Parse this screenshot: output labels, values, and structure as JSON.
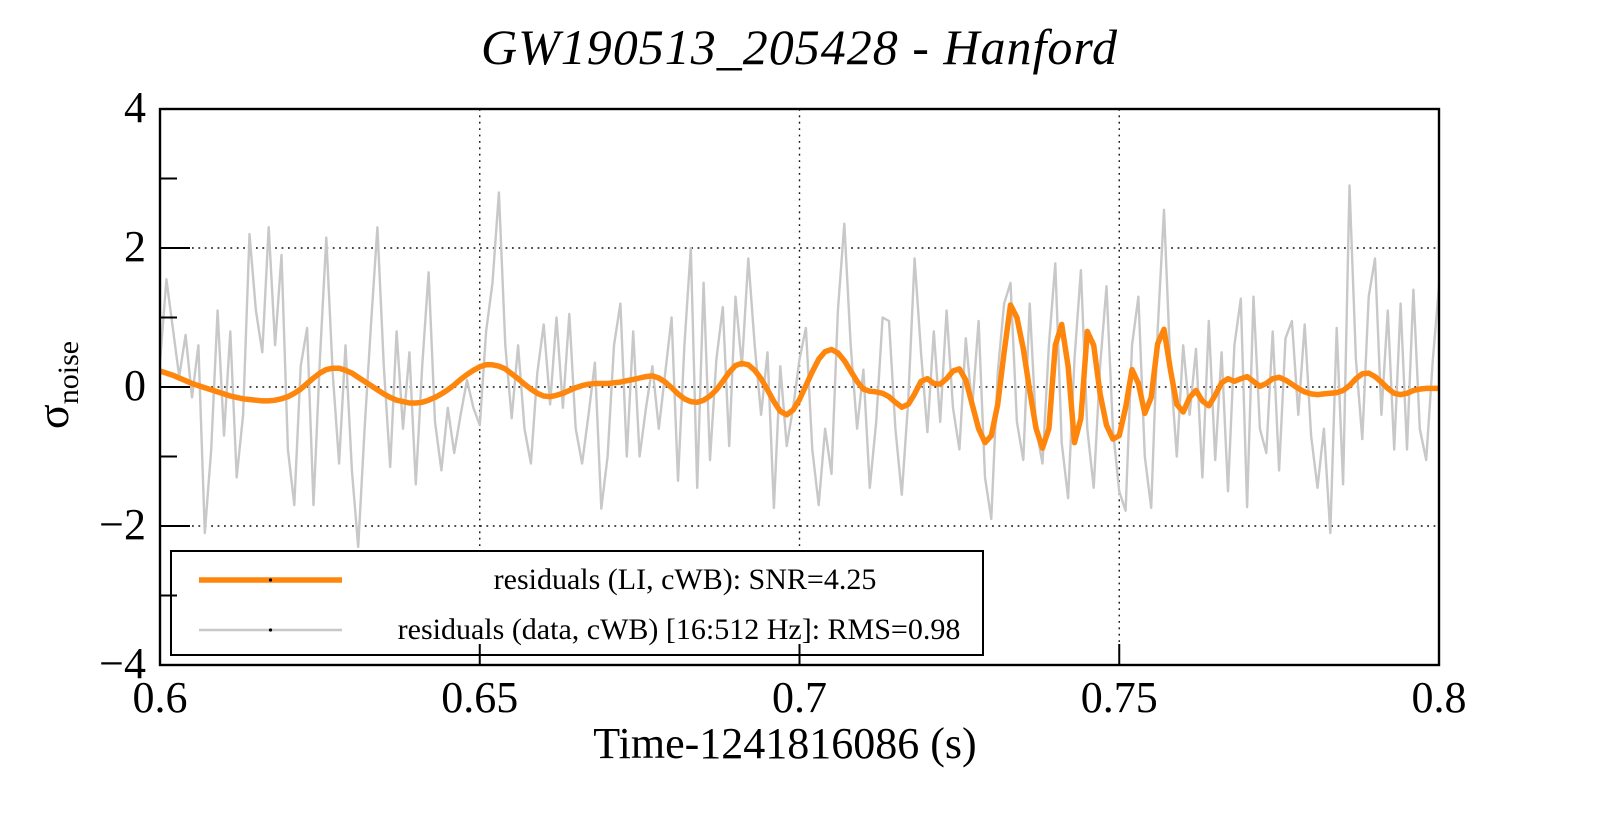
{
  "title": "GW190513_205428 - Hanford",
  "x_axis": {
    "label": "Time-1241816086 (s)",
    "tick_labels": [
      "0.6",
      "0.65",
      "0.7",
      "0.75",
      "0.8"
    ],
    "tick_values": [
      0.6,
      0.65,
      0.7,
      0.75,
      0.8
    ],
    "grid_values": [
      0.65,
      0.7,
      0.75
    ],
    "range": [
      0.6,
      0.8
    ]
  },
  "y_axis": {
    "label_sigma": "σ",
    "label_sub": "noise",
    "tick_labels": [
      "4",
      "2",
      "0",
      "−2",
      "−4"
    ],
    "tick_values": [
      4,
      2,
      0,
      -2,
      -4
    ],
    "minor_tick_values": [
      3,
      1,
      -1,
      -3
    ],
    "grid_values": [
      2,
      0,
      -2
    ],
    "range": [
      -4,
      4
    ]
  },
  "legend": {
    "entries": [
      {
        "label": "residuals (LI, cWB): SNR=4.25",
        "color": "#ff860d",
        "line_width": 5.5
      },
      {
        "label": "residuals (data, cWB) [16:512 Hz]: RMS=0.98",
        "color": "#c8c8c8",
        "line_width": 2.4
      }
    ]
  },
  "colors": {
    "frame": "#000000",
    "grid": "#111111",
    "background": "#ffffff"
  },
  "chart_data": {
    "type": "line",
    "title": "GW190513_205428 - Hanford",
    "xlabel": "Time-1241816086 (s)",
    "ylabel": "sigma_noise",
    "xlim": [
      0.6,
      0.8
    ],
    "ylim": [
      -4,
      4
    ],
    "grid": "dotted lines at x=0.65,0.7,0.75 and y=-2,0,2",
    "legend_position": "bottom-left",
    "x_start": 0.6,
    "x_step": 0.001,
    "series": [
      {
        "name": "residuals (LI, cWB): SNR=4.25",
        "color": "#ff860d",
        "line_width": 5.5,
        "values": [
          0.23,
          0.2,
          0.17,
          0.13,
          0.09,
          0.05,
          0.02,
          -0.01,
          -0.04,
          -0.07,
          -0.1,
          -0.13,
          -0.15,
          -0.17,
          -0.18,
          -0.19,
          -0.2,
          -0.2,
          -0.19,
          -0.17,
          -0.14,
          -0.09,
          -0.03,
          0.05,
          0.13,
          0.2,
          0.25,
          0.27,
          0.27,
          0.24,
          0.2,
          0.14,
          0.08,
          0.02,
          -0.04,
          -0.1,
          -0.15,
          -0.19,
          -0.21,
          -0.23,
          -0.23,
          -0.22,
          -0.19,
          -0.15,
          -0.1,
          -0.04,
          0.03,
          0.11,
          0.18,
          0.24,
          0.29,
          0.32,
          0.32,
          0.3,
          0.26,
          0.19,
          0.12,
          0.04,
          -0.03,
          -0.09,
          -0.13,
          -0.14,
          -0.12,
          -0.09,
          -0.05,
          -0.01,
          0.02,
          0.04,
          0.05,
          0.05,
          0.05,
          0.06,
          0.07,
          0.09,
          0.11,
          0.13,
          0.15,
          0.16,
          0.13,
          0.07,
          -0.01,
          -0.1,
          -0.17,
          -0.21,
          -0.22,
          -0.19,
          -0.13,
          -0.04,
          0.08,
          0.21,
          0.31,
          0.34,
          0.32,
          0.24,
          0.12,
          -0.04,
          -0.21,
          -0.35,
          -0.4,
          -0.33,
          -0.18,
          0.02,
          0.22,
          0.4,
          0.51,
          0.54,
          0.49,
          0.38,
          0.23,
          0.08,
          -0.03,
          -0.06,
          -0.07,
          -0.09,
          -0.14,
          -0.22,
          -0.29,
          -0.25,
          -0.1,
          0.08,
          0.12,
          0.05,
          0.04,
          0.12,
          0.23,
          0.26,
          0.1,
          -0.25,
          -0.6,
          -0.8,
          -0.7,
          -0.25,
          0.5,
          1.18,
          1.0,
          0.55,
          -0.05,
          -0.6,
          -0.88,
          -0.6,
          0.6,
          0.9,
          0.3,
          -0.8,
          -0.45,
          0.8,
          0.6,
          -0.1,
          -0.55,
          -0.75,
          -0.7,
          -0.3,
          0.25,
          0.05,
          -0.38,
          -0.15,
          0.62,
          0.83,
          0.25,
          -0.25,
          -0.36,
          -0.15,
          -0.05,
          -0.2,
          -0.27,
          -0.12,
          0.06,
          0.12,
          0.08,
          0.12,
          0.15,
          0.08,
          0.01,
          0.05,
          0.12,
          0.14,
          0.1,
          0.04,
          -0.02,
          -0.07,
          -0.1,
          -0.11,
          -0.1,
          -0.09,
          -0.08,
          -0.05,
          0.02,
          0.12,
          0.19,
          0.2,
          0.15,
          0.07,
          -0.02,
          -0.09,
          -0.11,
          -0.09,
          -0.05,
          -0.03,
          -0.02,
          -0.02,
          -0.02
        ]
      },
      {
        "name": "residuals (data, cWB) [16:512 Hz]: RMS=0.98",
        "color": "#c8c8c8",
        "line_width": 2.4,
        "values": [
          0.35,
          1.55,
          0.85,
          0.15,
          0.75,
          -0.15,
          0.6,
          -2.1,
          -0.9,
          1.1,
          -0.7,
          0.8,
          -1.3,
          -0.4,
          2.2,
          1.1,
          0.5,
          2.3,
          0.6,
          1.9,
          -0.9,
          -1.7,
          0.3,
          0.85,
          -1.7,
          0.4,
          2.15,
          0.2,
          -1.1,
          0.6,
          -1.2,
          -2.3,
          -0.6,
          0.9,
          2.3,
          0.3,
          -1.15,
          0.8,
          -0.6,
          0.5,
          -1.4,
          0.3,
          1.65,
          -0.5,
          -1.2,
          -0.3,
          -0.95,
          -0.4,
          0.1,
          -0.3,
          -0.55,
          0.8,
          1.5,
          2.8,
          0.6,
          -0.45,
          0.6,
          -0.6,
          -1.1,
          0.2,
          0.9,
          -0.25,
          1.0,
          -0.3,
          1.05,
          -0.6,
          -1.1,
          -0.4,
          0.35,
          -1.75,
          -1.0,
          0.6,
          1.2,
          -1.0,
          0.8,
          -1.0,
          -0.3,
          0.3,
          -0.6,
          0.2,
          1.0,
          -1.35,
          0.6,
          2.0,
          -1.45,
          1.5,
          -1.05,
          0.4,
          1.15,
          -0.85,
          1.3,
          0.3,
          1.85,
          0.6,
          -0.4,
          0.5,
          -1.74,
          0.3,
          -0.85,
          -0.3,
          0.4,
          0.85,
          -0.9,
          -1.7,
          -0.6,
          -1.25,
          1.1,
          2.35,
          0.6,
          -0.6,
          0.25,
          -1.45,
          -0.5,
          1.0,
          0.95,
          -0.6,
          -1.55,
          -0.2,
          1.85,
          0.5,
          -0.65,
          0.8,
          -0.5,
          1.1,
          -0.3,
          -0.9,
          0.7,
          -0.3,
          0.95,
          -1.3,
          -1.9,
          0.2,
          1.2,
          1.5,
          -0.5,
          -1.05,
          1.2,
          -0.6,
          -1.1,
          0.6,
          1.78,
          -0.8,
          -1.6,
          0.4,
          1.68,
          -0.6,
          -1.45,
          0.3,
          1.45,
          -0.6,
          -1.5,
          -1.78,
          0.6,
          1.3,
          -1.0,
          -1.74,
          0.8,
          2.55,
          0.3,
          -1.0,
          0.6,
          -0.4,
          0.55,
          -1.3,
          0.95,
          -1.05,
          0.5,
          -1.5,
          0.6,
          1.27,
          -1.73,
          1.3,
          -0.6,
          -0.95,
          0.8,
          -1.2,
          0.7,
          0.95,
          -0.4,
          0.9,
          -0.7,
          -1.45,
          -0.6,
          -2.1,
          0.85,
          -1.4,
          2.9,
          0.4,
          -0.75,
          1.3,
          1.85,
          -0.4,
          1.1,
          -0.9,
          1.2,
          -0.9,
          1.4,
          -0.6,
          -1.05,
          0.35,
          1.45
        ]
      }
    ]
  }
}
